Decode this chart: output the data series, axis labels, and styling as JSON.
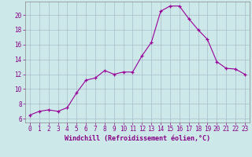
{
  "x": [
    0,
    1,
    2,
    3,
    4,
    5,
    6,
    7,
    8,
    9,
    10,
    11,
    12,
    13,
    14,
    15,
    16,
    17,
    18,
    19,
    20,
    21,
    22,
    23
  ],
  "y": [
    6.5,
    7.0,
    7.2,
    7.0,
    7.5,
    9.5,
    11.2,
    11.5,
    12.5,
    12.0,
    12.3,
    12.3,
    14.5,
    16.3,
    20.5,
    21.2,
    21.2,
    19.5,
    18.0,
    16.7,
    13.7,
    12.8,
    12.7,
    12.0
  ],
  "line_color": "#990099",
  "marker": "+",
  "marker_size": 3,
  "linewidth": 0.8,
  "xlabel": "Windchill (Refroidissement éolien,°C)",
  "xlabel_fontsize": 6.0,
  "yticks": [
    6,
    8,
    10,
    12,
    14,
    16,
    18,
    20
  ],
  "xlim": [
    -0.5,
    23.5
  ],
  "ylim": [
    5.5,
    21.8
  ],
  "bg_color": "#cce8e8",
  "grid_color": "#aabccc",
  "tick_color": "#880088",
  "tick_fontsize": 5.5,
  "spine_color": "#888888"
}
